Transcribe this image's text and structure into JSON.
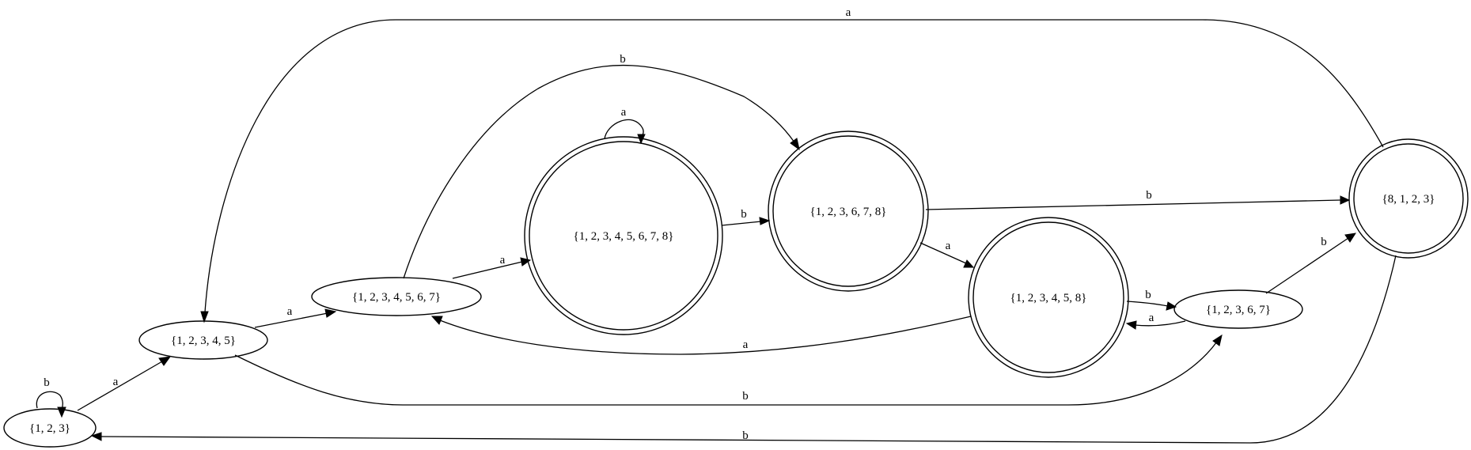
{
  "diagram": {
    "nodes": [
      {
        "id": "n123",
        "label": "{1, 2, 3}",
        "accepting": false
      },
      {
        "id": "n12345",
        "label": "{1, 2, 3, 4, 5}",
        "accepting": false
      },
      {
        "id": "n1234567",
        "label": "{1, 2, 3, 4, 5, 6, 7}",
        "accepting": false
      },
      {
        "id": "n12345678",
        "label": "{1, 2, 3, 4, 5, 6, 7, 8}",
        "accepting": true
      },
      {
        "id": "n123678",
        "label": "{1, 2, 3, 6, 7, 8}",
        "accepting": true
      },
      {
        "id": "n123458",
        "label": "{1, 2, 3, 4, 5, 8}",
        "accepting": true
      },
      {
        "id": "n12367",
        "label": "{1, 2, 3, 6, 7}",
        "accepting": false
      },
      {
        "id": "n8123",
        "label": "{8, 1, 2, 3}",
        "accepting": true
      }
    ],
    "edges": [
      {
        "from": "n123",
        "to": "n123",
        "label": "b"
      },
      {
        "from": "n123",
        "to": "n12345",
        "label": "a"
      },
      {
        "from": "n12345",
        "to": "n1234567",
        "label": "a"
      },
      {
        "from": "n12345",
        "to": "n12367",
        "label": "b"
      },
      {
        "from": "n1234567",
        "to": "n12345678",
        "label": "a"
      },
      {
        "from": "n1234567",
        "to": "n123678",
        "label": "b"
      },
      {
        "from": "n12345678",
        "to": "n12345678",
        "label": "a"
      },
      {
        "from": "n12345678",
        "to": "n123678",
        "label": "b"
      },
      {
        "from": "n123678",
        "to": "n8123",
        "label": "b"
      },
      {
        "from": "n123678",
        "to": "n123458",
        "label": "a"
      },
      {
        "from": "n123458",
        "to": "n12367",
        "label": "b"
      },
      {
        "from": "n123458",
        "to": "n1234567",
        "label": "a"
      },
      {
        "from": "n12367",
        "to": "n123458",
        "label": "a"
      },
      {
        "from": "n12367",
        "to": "n8123",
        "label": "b"
      },
      {
        "from": "n8123",
        "to": "n12345",
        "label": "a"
      },
      {
        "from": "n8123",
        "to": "n123",
        "label": "b"
      }
    ]
  }
}
